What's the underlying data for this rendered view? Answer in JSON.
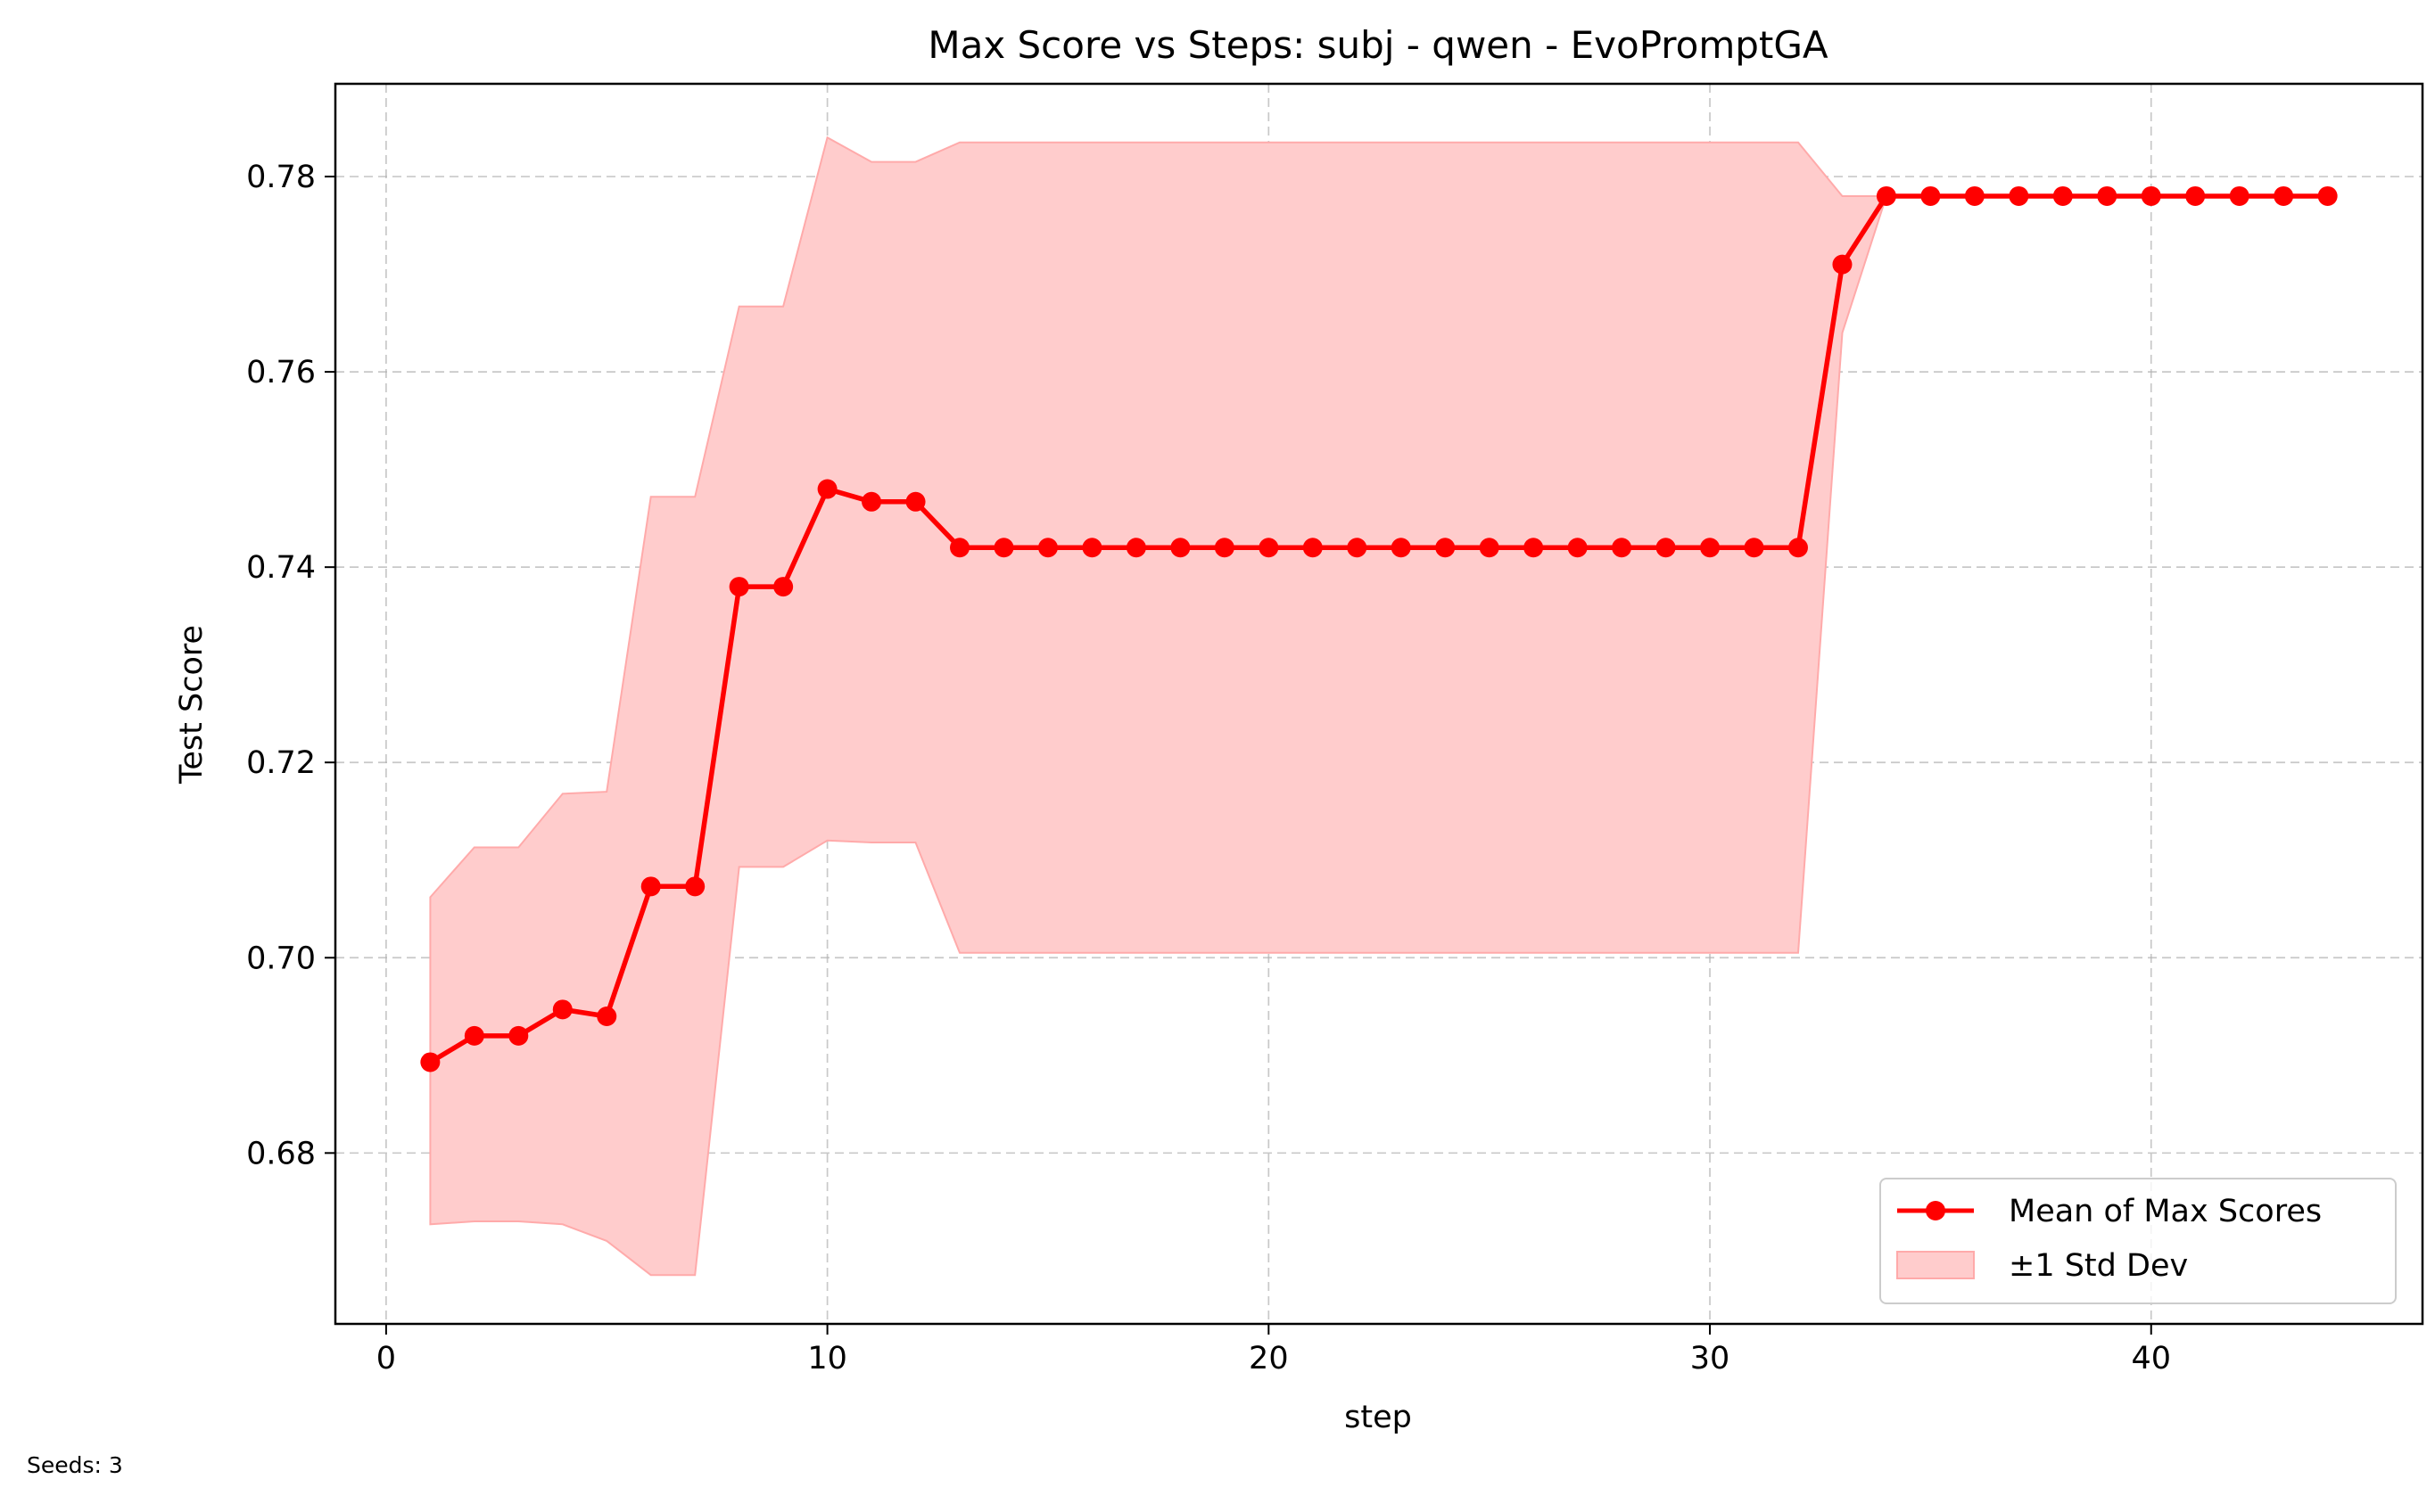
{
  "chart_data": {
    "type": "line",
    "title": "Max Score vs Steps: subj - qwen - EvoPromptGA",
    "xlabel": "step",
    "ylabel": "Test Score",
    "xlim": [
      -1.15,
      46.15
    ],
    "ylim": [
      0.6625,
      0.7895
    ],
    "xticks": [
      0,
      10,
      20,
      30,
      40
    ],
    "xtick_labels": [
      "0",
      "10",
      "20",
      "30",
      "40"
    ],
    "yticks": [
      0.68,
      0.7,
      0.72,
      0.74,
      0.76,
      0.78
    ],
    "ytick_labels": [
      "0.68",
      "0.70",
      "0.72",
      "0.74",
      "0.76",
      "0.78"
    ],
    "grid": true,
    "legend_position": "lower-right",
    "colors": {
      "line": "#ff0000",
      "band": "#ffcccc",
      "band_edge": "#ffaaaa",
      "grid": "#b0b0b0"
    },
    "series": [
      {
        "name": "Mean of Max Scores",
        "x": [
          1,
          2,
          3,
          4,
          5,
          6,
          7,
          8,
          9,
          10,
          11,
          12,
          13,
          14,
          15,
          16,
          17,
          18,
          19,
          20,
          21,
          22,
          23,
          24,
          25,
          26,
          27,
          28,
          29,
          30,
          31,
          32,
          33,
          34,
          35,
          36,
          37,
          38,
          39,
          40,
          41,
          42,
          43,
          44
        ],
        "values": [
          0.6893,
          0.692,
          0.692,
          0.6947,
          0.694,
          0.7073,
          0.7073,
          0.738,
          0.738,
          0.748,
          0.7467,
          0.7467,
          0.742,
          0.742,
          0.742,
          0.742,
          0.742,
          0.742,
          0.742,
          0.742,
          0.742,
          0.742,
          0.742,
          0.742,
          0.742,
          0.742,
          0.742,
          0.742,
          0.742,
          0.742,
          0.742,
          0.742,
          0.771,
          0.778,
          0.778,
          0.778,
          0.778,
          0.778,
          0.778,
          0.778,
          0.778,
          0.778,
          0.778,
          0.778
        ]
      },
      {
        "name": "±1 Std Dev",
        "x": [
          1,
          2,
          3,
          4,
          5,
          6,
          7,
          8,
          9,
          10,
          11,
          12,
          13,
          14,
          15,
          16,
          17,
          18,
          19,
          20,
          21,
          22,
          23,
          24,
          25,
          26,
          27,
          28,
          29,
          30,
          31,
          32,
          33,
          34,
          35,
          36,
          37,
          38,
          39,
          40,
          41,
          42,
          43,
          44
        ],
        "upper": [
          0.7062,
          0.7113,
          0.7113,
          0.7168,
          0.717,
          0.7472,
          0.7472,
          0.7667,
          0.7667,
          0.784,
          0.7815,
          0.7815,
          0.7835,
          0.7835,
          0.7835,
          0.7835,
          0.7835,
          0.7835,
          0.7835,
          0.7835,
          0.7835,
          0.7835,
          0.7835,
          0.7835,
          0.7835,
          0.7835,
          0.7835,
          0.7835,
          0.7835,
          0.7835,
          0.7835,
          0.7835,
          0.778,
          0.778,
          0.778,
          0.778,
          0.778,
          0.778,
          0.778,
          0.778,
          0.778,
          0.778,
          0.778,
          0.778
        ],
        "lower": [
          0.6727,
          0.673,
          0.673,
          0.6727,
          0.671,
          0.6675,
          0.6675,
          0.7093,
          0.7093,
          0.712,
          0.7118,
          0.7118,
          0.7005,
          0.7005,
          0.7005,
          0.7005,
          0.7005,
          0.7005,
          0.7005,
          0.7005,
          0.7005,
          0.7005,
          0.7005,
          0.7005,
          0.7005,
          0.7005,
          0.7005,
          0.7005,
          0.7005,
          0.7005,
          0.7005,
          0.7005,
          0.764,
          0.778,
          0.778,
          0.778,
          0.778,
          0.778,
          0.778,
          0.778,
          0.778,
          0.778,
          0.778,
          0.778
        ]
      }
    ]
  },
  "footnote": "Seeds: 3"
}
